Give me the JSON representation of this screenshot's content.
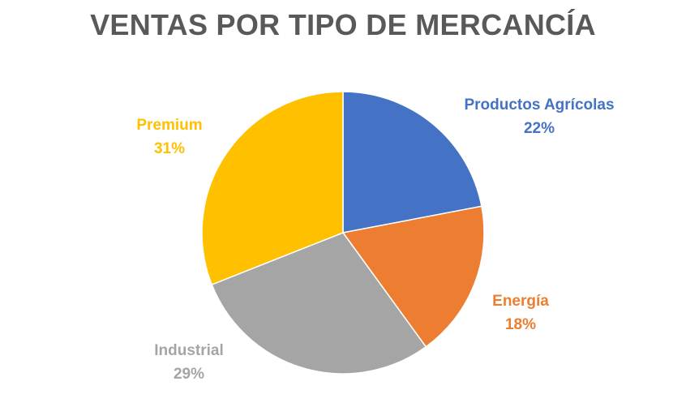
{
  "chart_data": {
    "type": "pie",
    "title": "VENTAS POR TIPO DE MERCANCÍA",
    "slices": [
      {
        "name": "Productos Agrícolas",
        "value": 22,
        "label": "22%",
        "color": "#4472C4"
      },
      {
        "name": "Energía",
        "value": 18,
        "label": "18%",
        "color": "#ED7D31"
      },
      {
        "name": "Industrial",
        "value": 29,
        "label": "29%",
        "color": "#A5A5A5"
      },
      {
        "name": "Premium",
        "value": 31,
        "label": "31%",
        "color": "#FFC000"
      }
    ],
    "start_angle_deg": 0,
    "direction": "clockwise",
    "legend": "none",
    "data_labels": "category name and percentage, outside end"
  }
}
